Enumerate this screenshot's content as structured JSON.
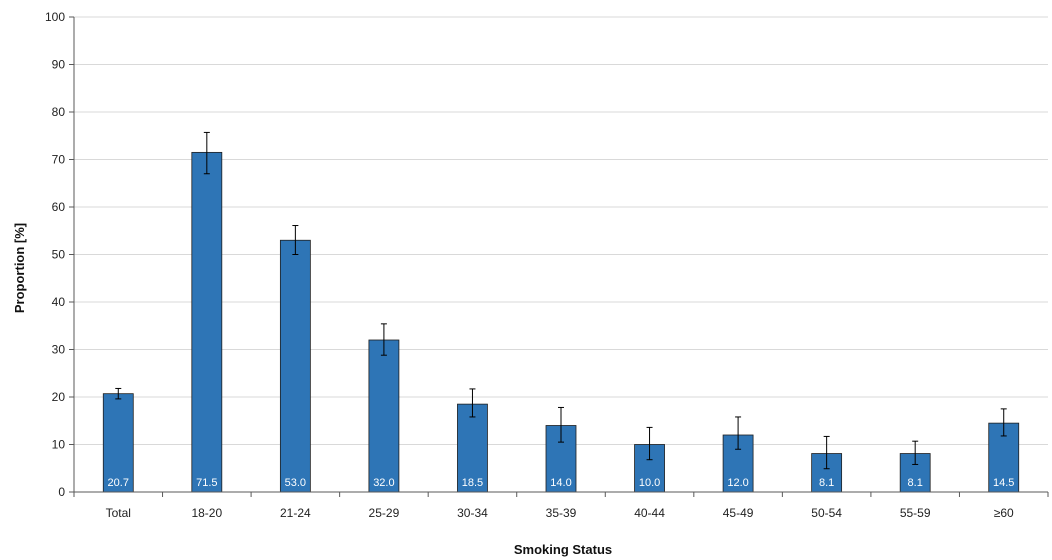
{
  "chart_data": {
    "type": "bar",
    "xlabel": "Smoking Status",
    "ylabel": "Proportion [%]",
    "ylim": [
      0,
      100
    ],
    "yticks": [
      0,
      10,
      20,
      30,
      40,
      50,
      60,
      70,
      80,
      90,
      100
    ],
    "grid": true,
    "legend": "none",
    "bar_color": "#2E75B6",
    "categories": [
      "Total",
      "18-20",
      "21-24",
      "25-29",
      "30-34",
      "35-39",
      "40-44",
      "45-49",
      "50-54",
      "55-59",
      "≥60"
    ],
    "values": [
      20.7,
      71.5,
      53.0,
      32.0,
      18.5,
      14.0,
      10.0,
      12.0,
      8.1,
      8.1,
      14.5
    ],
    "data_labels": [
      "20.7",
      "71.5",
      "53.0",
      "32.0",
      "18.5",
      "14.0",
      "10.0",
      "12.0",
      "8.1",
      "8.1",
      "14.5"
    ],
    "error_low": [
      19.6,
      67.0,
      50.0,
      28.8,
      15.8,
      10.5,
      6.8,
      9.0,
      4.9,
      5.8,
      11.8
    ],
    "error_high": [
      21.8,
      75.7,
      56.1,
      35.4,
      21.7,
      17.8,
      13.6,
      15.8,
      11.7,
      10.7,
      17.5
    ]
  }
}
